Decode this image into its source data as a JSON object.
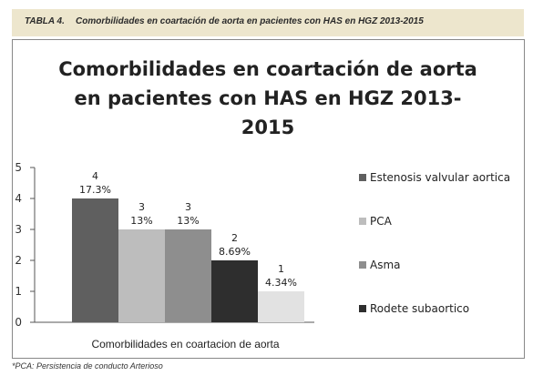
{
  "table_header": {
    "number": "TABLA 4.",
    "caption": "Comorbilidades en coartación de aorta en pacientes con HAS en HGZ 2013-2015"
  },
  "chart_data": {
    "type": "bar",
    "title_lines": [
      "Comorbilidades en coartación de aorta",
      "en pacientes con HAS en HGZ 2013-",
      "2015"
    ],
    "xlabel": "Comorbilidades en coartacion de aorta",
    "ylim": [
      0,
      5
    ],
    "yticks": [
      0,
      1,
      2,
      3,
      4,
      5
    ],
    "grid": false,
    "legend_position": "right",
    "series": [
      {
        "name": "Estenosis valvular aortica",
        "value": 4,
        "percent": "17.3%",
        "color": "#5f5f5f"
      },
      {
        "name": "PCA",
        "value": 3,
        "percent": "13%",
        "color": "#bdbdbd"
      },
      {
        "name": "Asma",
        "value": 3,
        "percent": "13%",
        "color": "#8e8e8e"
      },
      {
        "name": "Rodete subaortico",
        "value": 2,
        "percent": "8.69%",
        "color": "#2e2e2e"
      },
      {
        "value": 1,
        "percent": "4.34%",
        "color": "#e2e2e2"
      }
    ]
  },
  "footnote": "*PCA: Persistencia de conducto Arterioso"
}
